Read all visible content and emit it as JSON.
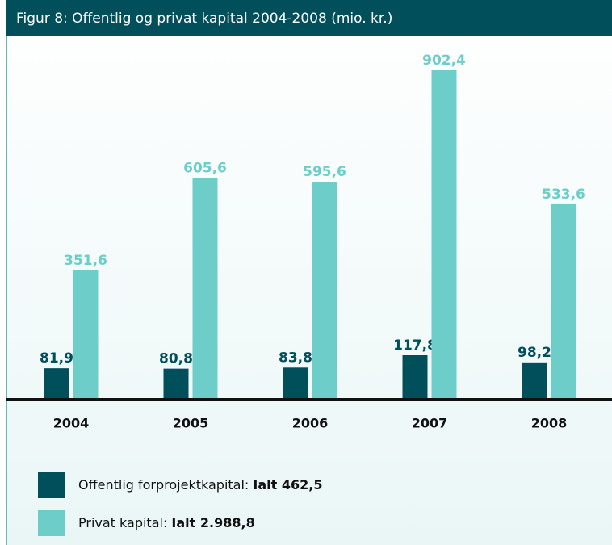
{
  "chart_data": {
    "type": "bar",
    "title": "Figur 8: Offentlig og privat kapital 2004-2008 (mio. kr.)",
    "categories": [
      "2004",
      "2005",
      "2006",
      "2007",
      "2008"
    ],
    "series": [
      {
        "name": "Offentlig forprojektkapital:",
        "total": "Ialt 462,5",
        "color": "#004f5a",
        "values": [
          81.9,
          80.8,
          83.8,
          117.8,
          98.2
        ],
        "value_labels": [
          "81,9",
          "80,8",
          "83,8",
          "117,8",
          "98,2"
        ]
      },
      {
        "name": "Privat kapital:",
        "total": "Ialt 2.988,8",
        "color": "#6dcdc8",
        "values": [
          351.6,
          605.6,
          595.6,
          902.4,
          533.6
        ],
        "value_labels": [
          "351,6",
          "605,6",
          "595,6",
          "902,4",
          "533,6"
        ]
      }
    ]
  }
}
